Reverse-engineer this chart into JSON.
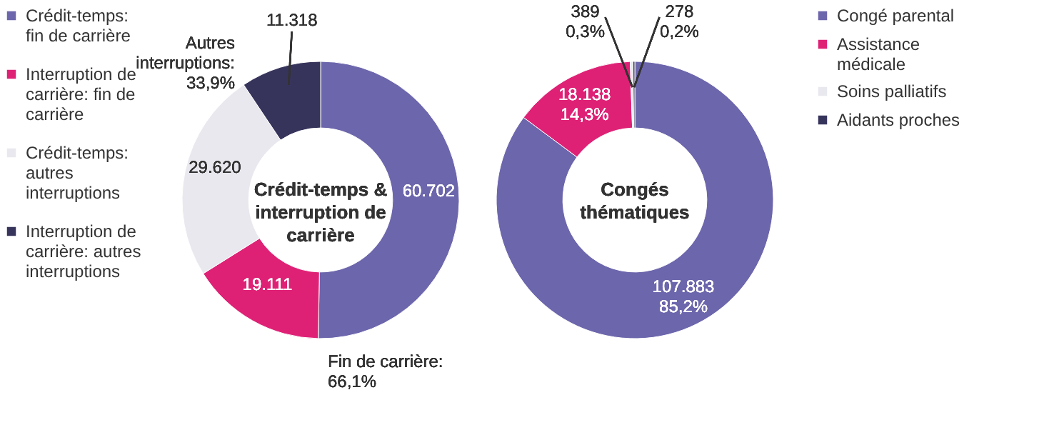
{
  "chart_data": [
    {
      "type": "donut",
      "title": "Crédit-temps & interruption de carrière",
      "legend": "left",
      "categories": [
        "Crédit-temps: fin de carrière",
        "Interruption de carrière: fin de carrière",
        "Crédit-temps: autres interruptions",
        "Interruption de carrière: autres interruptions"
      ],
      "values": [
        60702,
        19111,
        29620,
        11318
      ],
      "colors": [
        "#6c66ac",
        "#df2176",
        "#e8e8ee",
        "#37345c"
      ],
      "value_labels": [
        "60.702",
        "19.111",
        "29.620",
        "11.318"
      ],
      "annotations": [
        "Autres interruptions: 33,9%",
        "Fin de carrière: 66,1%"
      ]
    },
    {
      "type": "donut",
      "title": "Congés thématiques",
      "legend": "right",
      "categories": [
        "Congé parental",
        "Assistance médicale",
        "Soins palliatifs",
        "Aidants proches"
      ],
      "values": [
        107883,
        18138,
        389,
        278
      ],
      "colors": [
        "#6c66ac",
        "#df2176",
        "#e8e8ee",
        "#37345c"
      ],
      "value_labels": [
        "107.883 85,2%",
        "18.138 14,3%",
        "389 0,3%",
        "278 0,2%"
      ]
    }
  ]
}
